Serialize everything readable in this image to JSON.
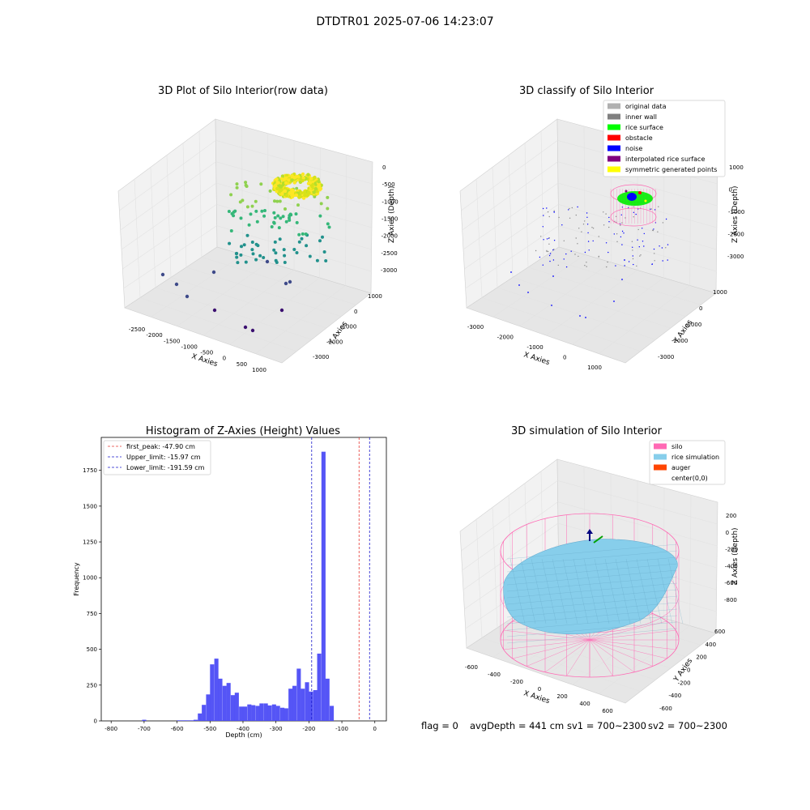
{
  "suptitle": "DTDTR01 2025-07-06 14:23:07",
  "footer": {
    "flag": "flag = 0",
    "avg": "avgDepth = 441 cm",
    "sv1": "sv1 = 700~2300",
    "sv2": "sv2 = 700~2300"
  },
  "colors": {
    "hist_bar": "#4c4cf5",
    "first_peak_line": "#e53935",
    "limit_line": "#1a1acc",
    "silo": "#ff69b4",
    "rice_simulation": "#87ceeb",
    "auger": "#ff4500",
    "pane": "#f2f2f2"
  },
  "chart_data": [
    {
      "type": "scatter",
      "variant": "3d",
      "title": "3D Plot of Silo Interior(row data)",
      "xlabel": "X Axies",
      "ylabel": "Y Axies",
      "zlabel": "Z Axies (Depth)",
      "x_ticks": [
        "-2500",
        "-2000",
        "-1500",
        "-1000",
        "-500",
        "0",
        "500",
        "1000"
      ],
      "y_ticks": [
        "1000",
        "0",
        "-1000",
        "-2000",
        "-3000"
      ],
      "z_ticks": [
        "0",
        "-500",
        "-1000",
        "-1500",
        "-2000",
        "-2500",
        "-3000"
      ],
      "colormap": "viridis"
    },
    {
      "type": "scatter",
      "variant": "3d",
      "title": "3D classify of Silo Interior",
      "xlabel": "X Axies",
      "ylabel": "Y Axies",
      "zlabel": "Z Axies (Depth)",
      "x_ticks": [
        "-3000",
        "-2000",
        "-1000",
        "0",
        "1000"
      ],
      "y_ticks": [
        "1000",
        "0",
        "-1000",
        "-2000",
        "-3000"
      ],
      "z_ticks": [
        "1000",
        "0",
        "-1000",
        "-2000",
        "-3000"
      ],
      "legend_position": "top-right",
      "legend": [
        {
          "label": "original data",
          "color": "#b0b0b0"
        },
        {
          "label": "inner wall",
          "color": "#808080"
        },
        {
          "label": "rice surface",
          "color": "#00ff00"
        },
        {
          "label": "obstacle",
          "color": "#ff0000"
        },
        {
          "label": "noise",
          "color": "#0000ff"
        },
        {
          "label": "interpolated rice surface",
          "color": "#800080"
        },
        {
          "label": "symmetric generated points",
          "color": "#ffff00"
        }
      ]
    },
    {
      "type": "bar",
      "variant": "histogram",
      "title": "Histogram of Z-Axies (Height) Values",
      "xlabel": "Depth (cm)",
      "ylabel": "Frequency",
      "xlim": [
        -830,
        35
      ],
      "ylim": [
        0,
        1980
      ],
      "x_ticks": [
        -800,
        -700,
        -600,
        -500,
        -400,
        -300,
        -200,
        -100,
        0
      ],
      "y_ticks": [
        0,
        250,
        500,
        750,
        1000,
        1250,
        1500,
        1750
      ],
      "bin_width": 12.5,
      "bins": [
        [
          -706,
          8
        ],
        [
          -600,
          4
        ],
        [
          -587,
          4
        ],
        [
          -575,
          4
        ],
        [
          -562,
          4
        ],
        [
          -550,
          8
        ],
        [
          -537,
          52
        ],
        [
          -525,
          112
        ],
        [
          -512,
          185
        ],
        [
          -500,
          395
        ],
        [
          -487,
          435
        ],
        [
          -475,
          295
        ],
        [
          -462,
          245
        ],
        [
          -450,
          265
        ],
        [
          -437,
          180
        ],
        [
          -425,
          197
        ],
        [
          -412,
          100
        ],
        [
          -400,
          100
        ],
        [
          -387,
          115
        ],
        [
          -375,
          110
        ],
        [
          -362,
          105
        ],
        [
          -350,
          122
        ],
        [
          -337,
          122
        ],
        [
          -325,
          108
        ],
        [
          -312,
          115
        ],
        [
          -300,
          105
        ],
        [
          -287,
          92
        ],
        [
          -275,
          88
        ],
        [
          -262,
          225
        ],
        [
          -250,
          245
        ],
        [
          -237,
          365
        ],
        [
          -225,
          225
        ],
        [
          -212,
          270
        ],
        [
          -200,
          205
        ],
        [
          -187,
          215
        ],
        [
          -175,
          470
        ],
        [
          -162,
          1880
        ],
        [
          -150,
          295
        ],
        [
          -137,
          105
        ]
      ],
      "legend_position": "top-left",
      "lines": [
        {
          "label": "first_peak: -47.90 cm",
          "x": -47.9,
          "color": "#e53935"
        },
        {
          "label": "Upper_limit: -15.97 cm",
          "x": -15.97,
          "color": "#1a1acc"
        },
        {
          "label": "Lower_limit: -191.59 cm",
          "x": -191.59,
          "color": "#1a1acc"
        }
      ]
    },
    {
      "type": "area",
      "variant": "3d-surface",
      "title": "3D simulation of Silo Interior",
      "xlabel": "X Axies",
      "ylabel": "Y Axies",
      "zlabel": "Z Axies (Depth)",
      "x_ticks": [
        "-600",
        "-400",
        "-200",
        "0",
        "200",
        "400",
        "600"
      ],
      "y_ticks": [
        "600",
        "400",
        "200",
        "0",
        "-200",
        "-400",
        "-600"
      ],
      "z_ticks": [
        "200",
        "0",
        "-200",
        "-400",
        "-600",
        "-800"
      ],
      "legend_position": "top-right",
      "legend": [
        {
          "label": "silo",
          "color": "#ff69b4"
        },
        {
          "label": "rice simulation",
          "color": "#87ceeb"
        },
        {
          "label": "auger",
          "color": "#ff4500"
        },
        {
          "label": "center(0,0)",
          "color": ""
        }
      ]
    }
  ]
}
